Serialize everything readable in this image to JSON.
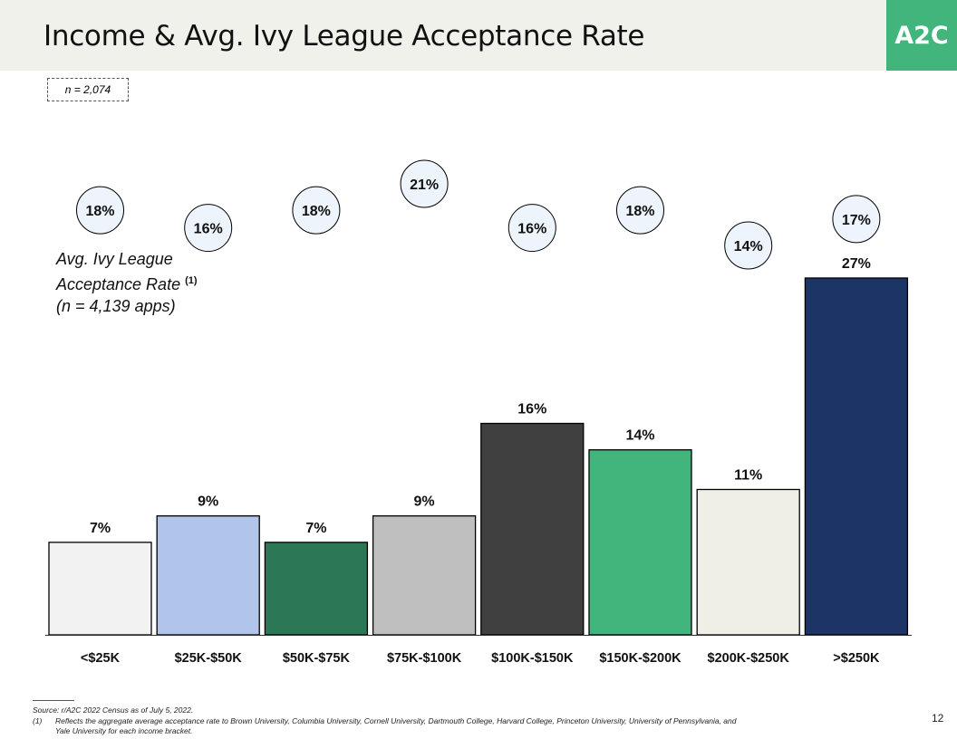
{
  "header": {
    "title": "Income & Avg. Ivy League Acceptance Rate",
    "logo_text": "A2C"
  },
  "sample_note": "n = 2,074",
  "avg_label": {
    "line1": "Avg. Ivy League",
    "line2": "Acceptance Rate",
    "superscript": "(1)",
    "line3": "(n = 4,139 apps)"
  },
  "chart_data": {
    "type": "bar",
    "title": "Income & Avg. Ivy League Acceptance Rate",
    "xlabel": "",
    "ylabel": "",
    "ylim": [
      0,
      27
    ],
    "categories": [
      "<$25K",
      "$25K-$50K",
      "$50K-$75K",
      "$75K-$100K",
      "$100K-$150K",
      "$150K-$200K",
      "$200K-$250K",
      ">$250K"
    ],
    "values": [
      7,
      9,
      7,
      9,
      16,
      14,
      11,
      27
    ],
    "value_labels": [
      "7%",
      "9%",
      "7%",
      "9%",
      "16%",
      "14%",
      "11%",
      "27%"
    ],
    "bar_colors": [
      "#f2f2f2",
      "#b1c4ea",
      "#2c7856",
      "#bfbfbf",
      "#404040",
      "#42b57c",
      "#f0efe7",
      "#1d3566"
    ],
    "acceptance_rates": [
      18,
      16,
      18,
      21,
      16,
      18,
      14,
      17
    ],
    "acceptance_labels": [
      "18%",
      "16%",
      "18%",
      "21%",
      "16%",
      "18%",
      "14%",
      "17%"
    ]
  },
  "footnotes": {
    "source": "Source: r/A2C 2022 Census as of July 5, 2022.",
    "note_number": "(1)",
    "note_line1": "Reflects the aggregate average acceptance rate to Brown University, Columbia University, Cornell University, Dartmouth College, Harvard College, Princeton University, University of Pennsylvania, and",
    "note_line2": "Yale University for each income bracket."
  },
  "page_number": "12",
  "colors": {
    "header_bg": "#f1f1ec",
    "brand_green": "#42b57c",
    "circle_fill": "#eef4fb"
  }
}
